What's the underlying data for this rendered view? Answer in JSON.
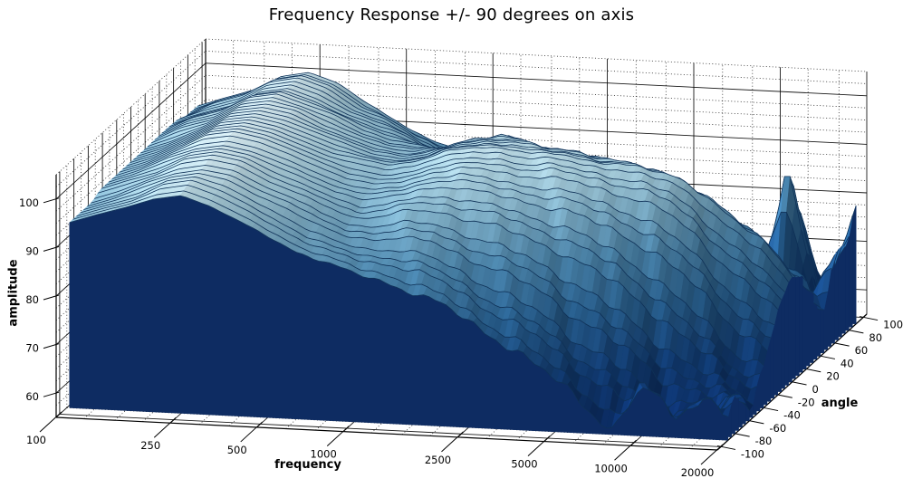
{
  "chart_data": {
    "type": "surface",
    "title": "Frequency Response +/- 90 degrees on axis",
    "xlabel": "frequency",
    "ylabel": "angle",
    "zlabel": "amplitude",
    "x_scale": "log",
    "x_range": [
      100,
      20000
    ],
    "x_ticks": [
      100,
      250,
      500,
      1000,
      2500,
      5000,
      10000,
      20000
    ],
    "x_minor_ticks": [
      125,
      160,
      200,
      315,
      400,
      630,
      800,
      1250,
      1600,
      2000,
      3150,
      4000,
      6300,
      8000,
      12500,
      16000
    ],
    "y_range": [
      -105,
      105
    ],
    "y_ticks": [
      -100,
      -80,
      -60,
      -40,
      -20,
      0,
      20,
      40,
      60,
      80,
      100
    ],
    "y_minor_step": 10,
    "z_range": [
      55,
      105
    ],
    "z_ticks": [
      60,
      70,
      80,
      90,
      100
    ],
    "z_minor_step": 2.5,
    "angles": [
      -90,
      -75,
      -60,
      -45,
      -30,
      -15,
      0,
      15,
      30,
      45,
      60,
      75,
      90
    ],
    "frequencies": [
      100,
      125,
      160,
      200,
      250,
      315,
      400,
      500,
      630,
      800,
      1000,
      1250,
      1600,
      2000,
      2500,
      3150,
      4000,
      5000,
      6300,
      8000,
      10000,
      12500,
      16000,
      20000
    ],
    "amplitude": [
      [
        93,
        95,
        97,
        99,
        100,
        98,
        95,
        92,
        89,
        87,
        85,
        84,
        82,
        80,
        77,
        74,
        70,
        66,
        62,
        56,
        66,
        60,
        64,
        60
      ],
      [
        93,
        95,
        97,
        100,
        101,
        99,
        96,
        93,
        90,
        88,
        87,
        87,
        86,
        84,
        81,
        78,
        75,
        71,
        67,
        63,
        58,
        59,
        57,
        61
      ],
      [
        93,
        95,
        98,
        100,
        101,
        100,
        97,
        95,
        92,
        90,
        90,
        91,
        91,
        89,
        87,
        85,
        82,
        78,
        74,
        70,
        66,
        62,
        60,
        58
      ],
      [
        94,
        96,
        98,
        101,
        102,
        101,
        98,
        96,
        94,
        92,
        93,
        95,
        95,
        94,
        93,
        91,
        89,
        86,
        83,
        79,
        74,
        69,
        64,
        62
      ],
      [
        94,
        96,
        99,
        101,
        102,
        101,
        99,
        97,
        95,
        94,
        95,
        97,
        98,
        97,
        96,
        95,
        94,
        92,
        90,
        87,
        83,
        78,
        72,
        68
      ],
      [
        94,
        96,
        99,
        102,
        103,
        102,
        100,
        98,
        96,
        95,
        96,
        98,
        99,
        99,
        98,
        98,
        97,
        96,
        95,
        93,
        89,
        84,
        79,
        74
      ],
      [
        94,
        96,
        99,
        102,
        103,
        102,
        100,
        98,
        97,
        96,
        97,
        99,
        100,
        100,
        99,
        99,
        98,
        98,
        97,
        96,
        93,
        88,
        84,
        78
      ],
      [
        94,
        96,
        99,
        102,
        103,
        102,
        100,
        98,
        96,
        95,
        96,
        98,
        99,
        99,
        98,
        98,
        97,
        96,
        95,
        93,
        89,
        85,
        80,
        75
      ],
      [
        94,
        97,
        99,
        102,
        103,
        102,
        99,
        97,
        95,
        94,
        95,
        97,
        98,
        97,
        96,
        96,
        94,
        92,
        90,
        87,
        84,
        79,
        73,
        69
      ],
      [
        94,
        97,
        99,
        102,
        103,
        101,
        99,
        96,
        94,
        93,
        93,
        95,
        96,
        94,
        93,
        92,
        89,
        86,
        83,
        80,
        75,
        70,
        65,
        63
      ],
      [
        94,
        96,
        98,
        101,
        102,
        100,
        97,
        95,
        93,
        90,
        90,
        91,
        91,
        89,
        87,
        85,
        82,
        79,
        75,
        71,
        67,
        63,
        61,
        75
      ],
      [
        93,
        96,
        98,
        101,
        102,
        100,
        96,
        94,
        91,
        88,
        87,
        87,
        86,
        84,
        81,
        79,
        76,
        72,
        68,
        64,
        61,
        88,
        62,
        72
      ],
      [
        93,
        95,
        97,
        100,
        101,
        99,
        95,
        92,
        89,
        87,
        85,
        84,
        83,
        81,
        78,
        75,
        71,
        67,
        63,
        60,
        62,
        80,
        60,
        78
      ]
    ],
    "colors": {
      "background": "#ffffff",
      "grid": "#000000",
      "front_face": "#0e2c62",
      "trace_line": "#0f3157",
      "colormap": [
        [
          0.0,
          "#0a2a63"
        ],
        [
          0.22,
          "#123f7a"
        ],
        [
          0.42,
          "#2b6699"
        ],
        [
          0.6,
          "#4e8ab2"
        ],
        [
          0.75,
          "#7fb0c9"
        ],
        [
          0.87,
          "#aed2df"
        ],
        [
          1.0,
          "#eaf6f9"
        ]
      ]
    }
  }
}
